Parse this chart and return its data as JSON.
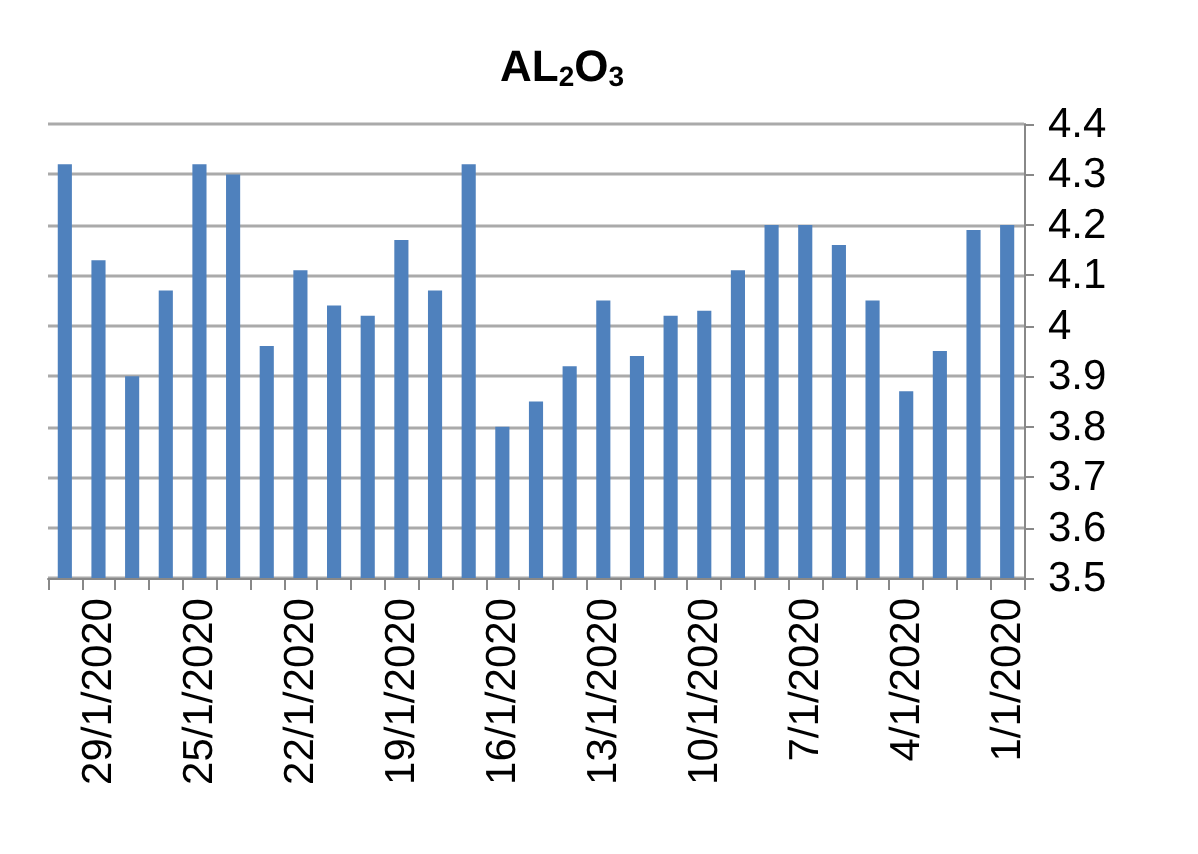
{
  "chart_data": {
    "type": "bar",
    "title": "AL$_{2}$O$_{3}$",
    "categories": [
      null,
      "29/1/2020",
      null,
      null,
      "25/1/2020",
      null,
      null,
      "22/1/2020",
      null,
      null,
      "19/1/2020",
      null,
      null,
      "16/1/2020",
      null,
      null,
      "13/1/2020",
      null,
      null,
      "10/1/2020",
      null,
      null,
      "7/1/2020",
      null,
      null,
      "4/1/2020",
      null,
      null,
      "1/1/2020"
    ],
    "values": [
      4.32,
      4.13,
      3.9,
      4.07,
      4.32,
      4.3,
      3.96,
      4.11,
      4.04,
      4.02,
      4.17,
      4.07,
      4.32,
      3.8,
      3.85,
      3.92,
      4.05,
      3.94,
      4.02,
      4.03,
      4.11,
      4.2,
      4.2,
      4.16,
      4.05,
      3.87,
      3.95,
      4.19,
      4.2
    ],
    "color": "#4f81bd",
    "ylim": [
      3.5,
      4.4
    ],
    "yticks": [
      3.5,
      3.6,
      3.7,
      3.8,
      3.9,
      4,
      4.1,
      4.2,
      4.3,
      4.4
    ],
    "grid": "y"
  }
}
